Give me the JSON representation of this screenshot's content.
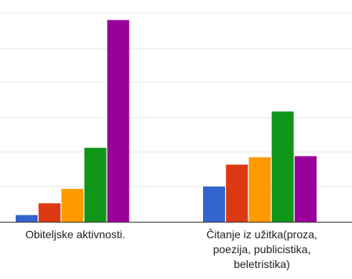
{
  "chart_data": {
    "type": "bar",
    "categories": [
      [
        "Obiteljske aktivnosti."
      ],
      [
        "Čitanje iz užitka(proza,",
        "poezija, publicistika,",
        "beletristika)"
      ]
    ],
    "series": [
      {
        "color": "#3366cc",
        "values": [
          2,
          10.5
        ]
      },
      {
        "color": "#dc3912",
        "values": [
          5.5,
          17
        ]
      },
      {
        "color": "#ff9900",
        "values": [
          9.8,
          19.2
        ]
      },
      {
        "color": "#109618",
        "values": [
          22,
          32.8
        ]
      },
      {
        "color": "#990099",
        "values": [
          60,
          19.5
        ]
      }
    ],
    "ylim": [
      0,
      62
    ],
    "grid": true,
    "legend": "none"
  }
}
